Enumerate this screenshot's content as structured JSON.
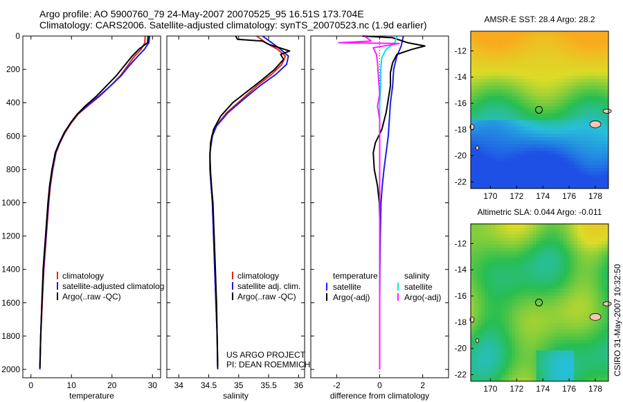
{
  "title": {
    "line1": "Argo profile: AO 5900760_79 24-May-2007 20070525_95 16.51S 173.704E",
    "line2": "Climatology: CARS2006. Satellite-adjusted climatology: synTS_20070523.nc (1.9d earlier)"
  },
  "side_label": "CSIRO 31-May-2007 10:32:50",
  "colors": {
    "climatology": "#e8201a",
    "satellite": "#1a1ae8",
    "argo": "#000000",
    "sat_sal": "#00e5e5",
    "argo_sal": "#ff1aff"
  },
  "chart_data": [
    {
      "type": "line",
      "id": "temperature",
      "xlabel": "temperature",
      "ylabel": "",
      "xlim": [
        -2,
        32
      ],
      "ylim": [
        2050,
        0
      ],
      "xticks": [
        0,
        10,
        20,
        30
      ],
      "yticks": [
        0,
        200,
        400,
        600,
        800,
        1000,
        1200,
        1400,
        1600,
        1800,
        2000
      ],
      "legend": {
        "title_left": "",
        "title_right": "",
        "entries": [
          {
            "label": "climatology",
            "color": "#e8201a"
          },
          {
            "label": "satellite-adjusted climatolog",
            "color": "#1a1ae8"
          },
          {
            "label": "Argo(..raw -QC)",
            "color": "#000000"
          }
        ]
      },
      "series": [
        {
          "name": "climatology",
          "color": "#e8201a",
          "points": [
            [
              28.2,
              0
            ],
            [
              28.1,
              40
            ],
            [
              27.2,
              80
            ],
            [
              25.6,
              120
            ],
            [
              23.8,
              180
            ],
            [
              22,
              240
            ],
            [
              19.6,
              300
            ],
            [
              17,
              360
            ],
            [
              14,
              420
            ],
            [
              11.6,
              470
            ],
            [
              10,
              520
            ],
            [
              8.4,
              580
            ],
            [
              7.2,
              640
            ],
            [
              6.2,
              700
            ],
            [
              5.4,
              800
            ],
            [
              4.8,
              900
            ],
            [
              4.4,
              1000
            ],
            [
              3.8,
              1200
            ],
            [
              3.2,
              1400
            ],
            [
              2.8,
              1600
            ],
            [
              2.4,
              1800
            ],
            [
              2.2,
              2000
            ]
          ]
        },
        {
          "name": "satellite-adjusted climatology",
          "color": "#1a1ae8",
          "points": [
            [
              29.3,
              0
            ],
            [
              29.1,
              40
            ],
            [
              28,
              80
            ],
            [
              26.4,
              120
            ],
            [
              24.2,
              180
            ],
            [
              22.2,
              240
            ],
            [
              19.6,
              300
            ],
            [
              16.8,
              360
            ],
            [
              13.8,
              420
            ],
            [
              11.4,
              470
            ],
            [
              9.8,
              520
            ],
            [
              8.3,
              580
            ],
            [
              7.1,
              640
            ],
            [
              6.1,
              700
            ],
            [
              5.3,
              800
            ],
            [
              4.7,
              900
            ],
            [
              4.3,
              1000
            ],
            [
              3.7,
              1200
            ],
            [
              3.1,
              1400
            ],
            [
              2.7,
              1600
            ],
            [
              2.4,
              1800
            ],
            [
              2.2,
              2000
            ]
          ]
        },
        {
          "name": "Argo(..raw -QC)",
          "color": "#000000",
          "points": [
            [
              28.9,
              0
            ],
            [
              28.8,
              40
            ],
            [
              26.6,
              80
            ],
            [
              25,
              120
            ],
            [
              23,
              180
            ],
            [
              21,
              240
            ],
            [
              18.6,
              300
            ],
            [
              16.2,
              360
            ],
            [
              13.4,
              420
            ],
            [
              11.4,
              470
            ],
            [
              9.8,
              520
            ],
            [
              8.2,
              580
            ],
            [
              7,
              640
            ],
            [
              6,
              700
            ],
            [
              5.2,
              800
            ],
            [
              4.6,
              900
            ],
            [
              4.2,
              1000
            ],
            [
              3.6,
              1200
            ],
            [
              3,
              1400
            ],
            [
              2.7,
              1600
            ],
            [
              2.4,
              1800
            ],
            [
              2.2,
              1990
            ]
          ]
        }
      ]
    },
    {
      "type": "line",
      "id": "salinity",
      "xlabel": "salinity",
      "ylabel": "",
      "xlim": [
        33.8,
        36.1
      ],
      "ylim": [
        2050,
        0
      ],
      "xticks": [
        34,
        34.5,
        35,
        35.5,
        36
      ],
      "yticks": [
        0,
        200,
        400,
        600,
        800,
        1000,
        1200,
        1400,
        1600,
        1800,
        2000
      ],
      "legend": {
        "title_left": "",
        "title_right": "",
        "entries": [
          {
            "label": "climatology",
            "color": "#e8201a"
          },
          {
            "label": "satellite adj. clim.",
            "color": "#1a1ae8"
          },
          {
            "label": "Argo(..raw -QC)",
            "color": "#000000"
          }
        ]
      },
      "annotation": [
        "US ARGO PROJECT",
        "PI: DEAN ROEMMICH"
      ],
      "series": [
        {
          "name": "climatology",
          "color": "#e8201a",
          "points": [
            [
              35.3,
              0
            ],
            [
              35.45,
              40
            ],
            [
              35.65,
              80
            ],
            [
              35.78,
              120
            ],
            [
              35.72,
              170
            ],
            [
              35.55,
              230
            ],
            [
              35.3,
              300
            ],
            [
              35.05,
              380
            ],
            [
              34.8,
              460
            ],
            [
              34.62,
              540
            ],
            [
              34.55,
              600
            ],
            [
              34.52,
              700
            ],
            [
              34.52,
              800
            ],
            [
              34.54,
              900
            ],
            [
              34.56,
              1000
            ],
            [
              34.58,
              1200
            ],
            [
              34.6,
              1400
            ],
            [
              34.62,
              1600
            ],
            [
              34.64,
              1800
            ],
            [
              34.65,
              2000
            ]
          ]
        },
        {
          "name": "satellite adj. clim.",
          "color": "#1a1ae8",
          "points": [
            [
              35.4,
              0
            ],
            [
              35.55,
              40
            ],
            [
              35.7,
              80
            ],
            [
              35.83,
              120
            ],
            [
              35.8,
              170
            ],
            [
              35.62,
              230
            ],
            [
              35.35,
              300
            ],
            [
              35.08,
              380
            ],
            [
              34.82,
              460
            ],
            [
              34.63,
              540
            ],
            [
              34.56,
              600
            ],
            [
              34.52,
              700
            ],
            [
              34.52,
              800
            ],
            [
              34.54,
              900
            ],
            [
              34.56,
              1000
            ],
            [
              34.58,
              1200
            ],
            [
              34.6,
              1400
            ],
            [
              34.62,
              1600
            ],
            [
              34.64,
              1800
            ],
            [
              34.65,
              2000
            ]
          ]
        },
        {
          "name": "Argo(..raw -QC)",
          "color": "#000000",
          "points": [
            [
              34.95,
              0
            ],
            [
              34.98,
              20
            ],
            [
              35.4,
              30
            ],
            [
              35.5,
              50
            ],
            [
              35.85,
              90
            ],
            [
              35.7,
              110
            ],
            [
              35.75,
              140
            ],
            [
              35.6,
              200
            ],
            [
              35.4,
              260
            ],
            [
              35.15,
              330
            ],
            [
              34.9,
              400
            ],
            [
              34.7,
              480
            ],
            [
              34.58,
              560
            ],
            [
              34.53,
              640
            ],
            [
              34.52,
              720
            ],
            [
              34.53,
              820
            ],
            [
              34.55,
              920
            ],
            [
              34.57,
              1000
            ],
            [
              34.59,
              1200
            ],
            [
              34.61,
              1400
            ],
            [
              34.63,
              1600
            ],
            [
              34.64,
              1800
            ],
            [
              34.65,
              1990
            ]
          ]
        }
      ]
    },
    {
      "type": "line",
      "id": "difference",
      "xlabel": "difference from climatology",
      "ylabel": "",
      "xlim": [
        -3.2,
        3.2
      ],
      "ylim": [
        2050,
        0
      ],
      "xticks": [
        -2,
        0,
        2
      ],
      "yticks": [
        0,
        200,
        400,
        600,
        800,
        1000,
        1200,
        1400,
        1600,
        1800,
        2000
      ],
      "legend": {
        "title_left": "temperature",
        "title_right": "salinity",
        "entries": [
          {
            "label": "satellite",
            "color": "#1a1ae8",
            "col": 0
          },
          {
            "label": "Argo(-adj)",
            "color": "#000000",
            "col": 0
          },
          {
            "label": "satellite",
            "color": "#00e5e5",
            "col": 1
          },
          {
            "label": "Argo(-adj)",
            "color": "#ff1aff",
            "col": 1
          }
        ]
      },
      "series": [
        {
          "name": "temperature satellite",
          "color": "#1a1ae8",
          "points": [
            [
              1.1,
              0
            ],
            [
              1.0,
              60
            ],
            [
              0.8,
              120
            ],
            [
              0.65,
              200
            ],
            [
              0.6,
              300
            ],
            [
              0.5,
              400
            ],
            [
              0.45,
              500
            ],
            [
              0.4,
              600
            ],
            [
              0.3,
              700
            ],
            [
              0.2,
              800
            ],
            [
              0.12,
              900
            ],
            [
              0.06,
              1000
            ],
            [
              0.03,
              1200
            ],
            [
              0.01,
              1400
            ],
            [
              0,
              1600
            ],
            [
              0,
              2000
            ]
          ]
        },
        {
          "name": "temperature Argo(-adj)",
          "color": "#000000",
          "points": [
            [
              -0.8,
              0
            ],
            [
              0.6,
              10
            ],
            [
              1.3,
              40
            ],
            [
              2.1,
              60
            ],
            [
              1.5,
              80
            ],
            [
              0.8,
              110
            ],
            [
              0.6,
              160
            ],
            [
              0.5,
              220
            ],
            [
              0.5,
              300
            ],
            [
              0.4,
              380
            ],
            [
              0.3,
              460
            ],
            [
              0.1,
              560
            ],
            [
              -0.2,
              640
            ],
            [
              -0.3,
              700
            ],
            [
              -0.25,
              800
            ],
            [
              -0.1,
              900
            ],
            [
              -0.02,
              1000
            ],
            [
              0,
              1100
            ],
            [
              0,
              2000
            ]
          ]
        },
        {
          "name": "salinity satellite",
          "color": "#00e5e5",
          "points": [
            [
              0.8,
              0
            ],
            [
              0.7,
              40
            ],
            [
              0.3,
              80
            ],
            [
              0.1,
              130
            ],
            [
              0.05,
              200
            ],
            [
              0.05,
              300
            ],
            [
              0,
              400
            ],
            [
              0,
              600
            ],
            [
              0,
              2000
            ]
          ]
        },
        {
          "name": "salinity Argo(-adj)",
          "color": "#ff1aff",
          "points": [
            [
              -0.7,
              0
            ],
            [
              -0.4,
              30
            ],
            [
              -1.9,
              40
            ],
            [
              0.9,
              45
            ],
            [
              -0.3,
              70
            ],
            [
              -0.15,
              110
            ],
            [
              -0.1,
              160
            ],
            [
              -0.05,
              260
            ],
            [
              0,
              350
            ],
            [
              -0.1,
              420
            ],
            [
              0,
              500
            ],
            [
              0,
              600
            ],
            [
              0,
              2000
            ]
          ]
        }
      ]
    },
    {
      "type": "heatmap",
      "id": "sst-map",
      "title": "AMSR-E SST: 28.4 Argo: 28.2",
      "xlim": [
        168.5,
        179
      ],
      "ylim": [
        -22.5,
        -10.5
      ],
      "xticks": [
        170,
        172,
        174,
        176,
        178
      ],
      "yticks": [
        -12,
        -14,
        -16,
        -18,
        -20,
        -22
      ],
      "marker": {
        "lon": 173.7,
        "lat": -16.5
      }
    },
    {
      "type": "heatmap",
      "id": "sla-map",
      "title": "Altimetric SLA: 0.044 Argo: -0.011",
      "xlim": [
        168.5,
        179
      ],
      "ylim": [
        -22.5,
        -10.5
      ],
      "xticks": [
        170,
        172,
        174,
        176,
        178
      ],
      "yticks": [
        -12,
        -14,
        -16,
        -18,
        -20,
        -22
      ],
      "marker": {
        "lon": 173.7,
        "lat": -16.5
      }
    }
  ]
}
